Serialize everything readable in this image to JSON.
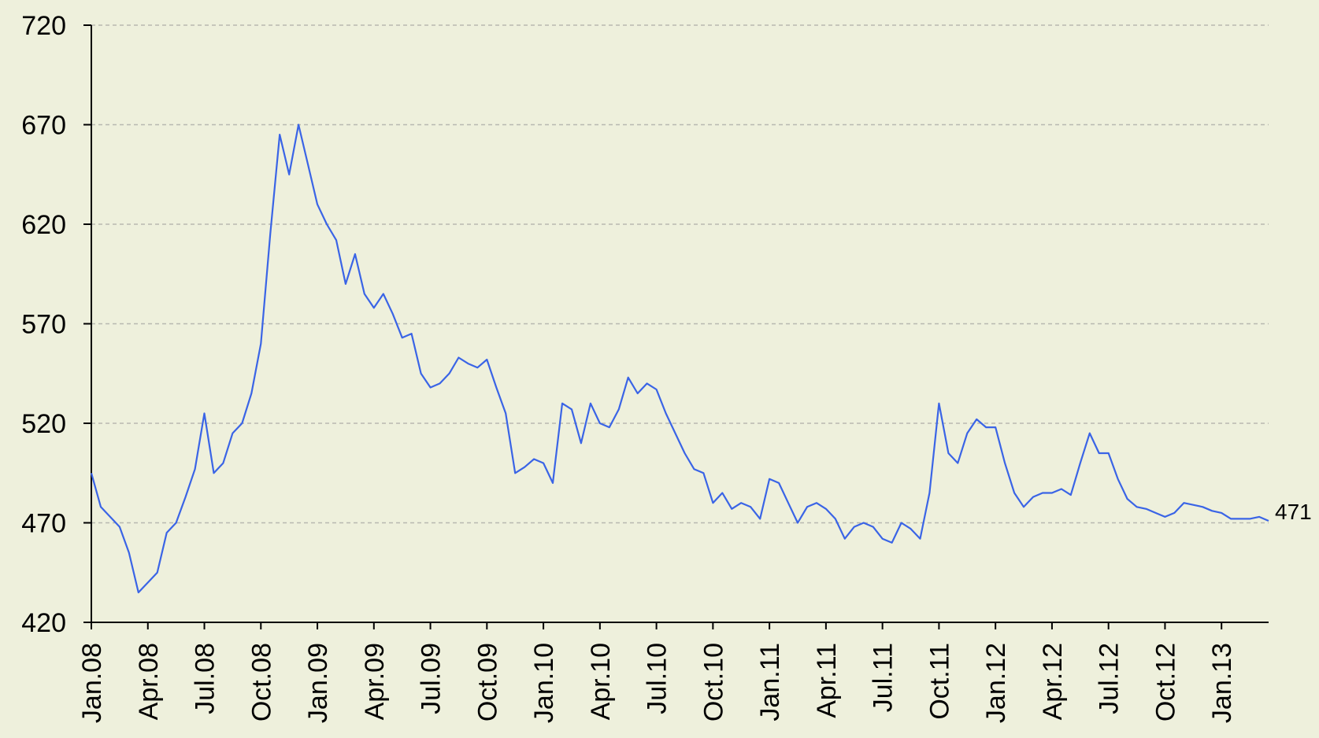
{
  "chart_data": {
    "type": "line",
    "categories": [
      "Jan.08",
      null,
      null,
      null,
      null,
      null,
      "Apr.08",
      null,
      null,
      null,
      null,
      null,
      "Jul.08",
      null,
      null,
      null,
      null,
      null,
      "Oct.08",
      null,
      null,
      null,
      null,
      null,
      "Jan.09",
      null,
      null,
      null,
      null,
      null,
      "Apr.09",
      null,
      null,
      null,
      null,
      null,
      "Jul.09",
      null,
      null,
      null,
      null,
      null,
      "Oct.09",
      null,
      null,
      null,
      null,
      null,
      "Jan.10",
      null,
      null,
      null,
      null,
      null,
      "Apr.10",
      null,
      null,
      null,
      null,
      null,
      "Jul.10",
      null,
      null,
      null,
      null,
      null,
      "Oct.10",
      null,
      null,
      null,
      null,
      null,
      "Jan.11",
      null,
      null,
      null,
      null,
      null,
      "Apr.11",
      null,
      null,
      null,
      null,
      null,
      "Jul.11",
      null,
      null,
      null,
      null,
      null,
      "Oct.11",
      null,
      null,
      null,
      null,
      null,
      "Jan.12",
      null,
      null,
      null,
      null,
      null,
      "Apr.12",
      null,
      null,
      null,
      null,
      null,
      "Jul.12",
      null,
      null,
      null,
      null,
      null,
      "Oct.12",
      null,
      null,
      null,
      null,
      null,
      "Jan.13",
      null,
      null,
      null,
      null,
      null
    ],
    "values": [
      495,
      478,
      473,
      468,
      455,
      435,
      440,
      445,
      465,
      470,
      483,
      497,
      525,
      495,
      500,
      515,
      520,
      535,
      560,
      615,
      665,
      645,
      670,
      650,
      630,
      620,
      612,
      590,
      605,
      585,
      578,
      585,
      575,
      563,
      565,
      545,
      538,
      540,
      545,
      553,
      550,
      548,
      552,
      538,
      525,
      495,
      498,
      502,
      500,
      490,
      530,
      527,
      510,
      530,
      520,
      518,
      527,
      543,
      535,
      540,
      537,
      525,
      515,
      505,
      497,
      495,
      480,
      485,
      477,
      480,
      478,
      472,
      492,
      490,
      480,
      470,
      478,
      480,
      477,
      472,
      462,
      468,
      470,
      468,
      462,
      460,
      470,
      467,
      462,
      485,
      530,
      505,
      500,
      515,
      522,
      518,
      518,
      500,
      485,
      478,
      483,
      485,
      485,
      487,
      484,
      500,
      515,
      505,
      505,
      492,
      482,
      478,
      477,
      475,
      473,
      475,
      480,
      479,
      478,
      476,
      475,
      472,
      472,
      472,
      473,
      471
    ],
    "color": "#3a64e6",
    "ylim": [
      420,
      720
    ],
    "yticks": [
      420,
      470,
      520,
      570,
      620,
      670,
      720
    ],
    "grid": true
  }
}
